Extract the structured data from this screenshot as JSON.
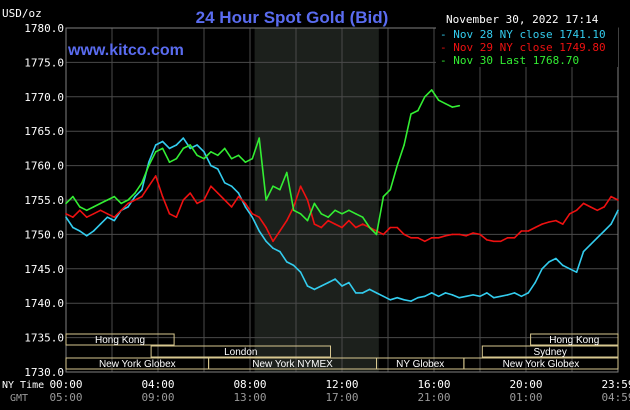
{
  "header": {
    "title": "24 Hour Spot Gold (Bid)",
    "currency": "USD/oz",
    "timestamp": "November 30, 2022 17:14",
    "watermark": "www.kitco.com"
  },
  "colors": {
    "background": "#000000",
    "plot_background": "#000000",
    "grid": "#4a4a4a",
    "shaded_session": "#1c201c",
    "title": "#5a6cf0",
    "watermark": "#5a6cf0",
    "axis_text": "#ffffff",
    "gmt_text": "#9a9a9a",
    "session_box": "#d8c890",
    "series": [
      "#33ccee",
      "#ee1111",
      "#33ee33"
    ]
  },
  "legend": {
    "placement": "top-right",
    "entries": [
      {
        "dash": "-",
        "text": "Nov 28 NY close 1741.10",
        "color": "#33ccee"
      },
      {
        "dash": "-",
        "text": "Nov 29 NY close 1749.80",
        "color": "#ee1111"
      },
      {
        "dash": "-",
        "text": "Nov 30 Last 1768.70",
        "color": "#33ee33"
      }
    ]
  },
  "axis": {
    "ny_time_label": "NY Time",
    "gmt_label": "GMT",
    "x_ticks": [
      {
        "ny": "00:00",
        "gmt": "05:00",
        "hour": 0
      },
      {
        "ny": "04:00",
        "gmt": "09:00",
        "hour": 4
      },
      {
        "ny": "08:00",
        "gmt": "13:00",
        "hour": 8
      },
      {
        "ny": "12:00",
        "gmt": "17:00",
        "hour": 12
      },
      {
        "ny": "16:00",
        "gmt": "21:00",
        "hour": 16
      },
      {
        "ny": "20:00",
        "gmt": "01:00",
        "hour": 20
      },
      {
        "ny": "23:59",
        "gmt": "04:59",
        "hour": 24
      }
    ],
    "y_ticks": [
      "1780.0",
      "1775.0",
      "1770.0",
      "1765.0",
      "1760.0",
      "1755.0",
      "1750.0",
      "1745.0",
      "1740.0",
      "1735.0",
      "1730.0"
    ]
  },
  "sessions": [
    {
      "label": "Hong Kong",
      "start": 0,
      "end": 4.7,
      "row": 0
    },
    {
      "label": "Hong Kong",
      "start": 20.2,
      "end": 24,
      "row": 0
    },
    {
      "label": "London",
      "start": 3.7,
      "end": 11.5,
      "row": 1
    },
    {
      "label": "Sydney",
      "start": 18.1,
      "end": 24,
      "row": 1
    },
    {
      "label": "New York Globex",
      "start": 0,
      "end": 6.2,
      "row": 2
    },
    {
      "label": "New York NYMEX",
      "start": 6.2,
      "end": 13.5,
      "row": 2
    },
    {
      "label": "NY Globex",
      "start": 13.5,
      "end": 17.3,
      "row": 2
    },
    {
      "label": "New York Globex",
      "start": 17.3,
      "end": 24,
      "row": 2
    }
  ],
  "chart_data": {
    "type": "line",
    "title": "24 Hour Spot Gold (Bid)",
    "ylabel": "USD/oz",
    "xlabel": "NY Time",
    "xlim": [
      0,
      24
    ],
    "ylim": [
      1730,
      1780
    ],
    "grid": true,
    "legend": "top-right",
    "shaded_region": [
      8.2,
      13.6
    ],
    "series": [
      {
        "name": "Nov 28 NY close 1741.10",
        "color": "#33ccee",
        "x": [
          0,
          0.3,
          0.6,
          0.9,
          1.2,
          1.5,
          1.8,
          2.1,
          2.4,
          2.7,
          3.0,
          3.3,
          3.6,
          3.9,
          4.2,
          4.5,
          4.8,
          5.1,
          5.4,
          5.7,
          6.0,
          6.3,
          6.6,
          6.9,
          7.2,
          7.5,
          7.8,
          8.1,
          8.4,
          8.7,
          9.0,
          9.3,
          9.6,
          9.9,
          10.2,
          10.5,
          10.8,
          11.1,
          11.4,
          11.7,
          12.0,
          12.3,
          12.6,
          12.9,
          13.2,
          13.5,
          13.8,
          14.1,
          14.4,
          14.7,
          15.0,
          15.3,
          15.6,
          15.9,
          16.2,
          16.5,
          16.8,
          17.1,
          17.4,
          17.7,
          18.0,
          18.3,
          18.6,
          18.9,
          19.2,
          19.5,
          19.8,
          20.1,
          20.4,
          20.7,
          21.0,
          21.3,
          21.6,
          21.9,
          22.2,
          22.5,
          22.8,
          23.1,
          23.4,
          23.7,
          24.0
        ],
        "values": [
          1752.5,
          1751.0,
          1750.5,
          1749.8,
          1750.5,
          1751.5,
          1752.5,
          1752.0,
          1753.5,
          1754.0,
          1755.5,
          1756.5,
          1760.5,
          1763.0,
          1763.5,
          1762.5,
          1763.0,
          1764.0,
          1762.5,
          1763.0,
          1762.0,
          1760.0,
          1759.5,
          1757.5,
          1757.0,
          1756.0,
          1754.0,
          1752.5,
          1750.5,
          1749.0,
          1748.0,
          1747.5,
          1746.0,
          1745.5,
          1744.5,
          1742.5,
          1742.0,
          1742.5,
          1743.0,
          1743.5,
          1742.5,
          1743.0,
          1741.5,
          1741.5,
          1742.0,
          1741.5,
          1741.0,
          1740.5,
          1740.8,
          1740.5,
          1740.3,
          1740.8,
          1741.0,
          1741.5,
          1741.0,
          1741.5,
          1741.2,
          1740.8,
          1741.0,
          1741.2,
          1741.0,
          1741.5,
          1740.8,
          1741.0,
          1741.2,
          1741.5,
          1741.0,
          1741.5,
          1743.0,
          1745.0,
          1746.0,
          1746.5,
          1745.5,
          1745.0,
          1744.5,
          1747.5,
          1748.5,
          1749.5,
          1750.5,
          1751.5,
          1753.5
        ]
      },
      {
        "name": "Nov 29 NY close 1749.80",
        "color": "#ee1111",
        "x": [
          0,
          0.3,
          0.6,
          0.9,
          1.2,
          1.5,
          1.8,
          2.1,
          2.4,
          2.7,
          3.0,
          3.3,
          3.6,
          3.9,
          4.2,
          4.5,
          4.8,
          5.1,
          5.4,
          5.7,
          6.0,
          6.3,
          6.6,
          6.9,
          7.2,
          7.5,
          7.8,
          8.1,
          8.4,
          8.7,
          9.0,
          9.3,
          9.6,
          9.9,
          10.2,
          10.5,
          10.8,
          11.1,
          11.4,
          11.7,
          12.0,
          12.3,
          12.6,
          12.9,
          13.2,
          13.5,
          13.8,
          14.1,
          14.4,
          14.7,
          15.0,
          15.3,
          15.6,
          15.9,
          16.2,
          16.5,
          16.8,
          17.1,
          17.4,
          17.7,
          18.0,
          18.3,
          18.6,
          18.9,
          19.2,
          19.5,
          19.8,
          20.1,
          20.4,
          20.7,
          21.0,
          21.3,
          21.6,
          21.9,
          22.2,
          22.5,
          22.8,
          23.1,
          23.4,
          23.7,
          24.0
        ],
        "values": [
          1753.0,
          1752.5,
          1753.5,
          1752.5,
          1753.0,
          1753.5,
          1753.0,
          1752.5,
          1753.5,
          1754.5,
          1755.0,
          1755.5,
          1757.0,
          1758.5,
          1755.5,
          1753.0,
          1752.5,
          1755.0,
          1756.0,
          1754.5,
          1755.0,
          1757.0,
          1756.0,
          1755.0,
          1754.0,
          1755.5,
          1754.5,
          1753.0,
          1752.5,
          1751.0,
          1749.0,
          1750.5,
          1752.0,
          1754.0,
          1757.0,
          1755.0,
          1751.5,
          1751.0,
          1752.0,
          1751.5,
          1751.0,
          1752.0,
          1751.0,
          1751.5,
          1751.0,
          1750.5,
          1750.0,
          1751.0,
          1751.0,
          1750.0,
          1749.5,
          1749.5,
          1749.0,
          1749.5,
          1749.5,
          1749.8,
          1750.0,
          1750.0,
          1749.8,
          1750.2,
          1750.0,
          1749.2,
          1749.0,
          1749.0,
          1749.5,
          1749.5,
          1750.5,
          1750.5,
          1751.0,
          1751.5,
          1751.8,
          1752.0,
          1751.5,
          1753.0,
          1753.5,
          1754.5,
          1754.0,
          1753.5,
          1754.0,
          1755.5,
          1755.0
        ]
      },
      {
        "name": "Nov 30 Last 1768.70",
        "color": "#33ee33",
        "x": [
          0,
          0.3,
          0.6,
          0.9,
          1.2,
          1.5,
          1.8,
          2.1,
          2.4,
          2.7,
          3.0,
          3.3,
          3.6,
          3.9,
          4.2,
          4.5,
          4.8,
          5.1,
          5.4,
          5.7,
          6.0,
          6.3,
          6.6,
          6.9,
          7.2,
          7.5,
          7.8,
          8.1,
          8.4,
          8.7,
          9.0,
          9.3,
          9.6,
          9.9,
          10.2,
          10.5,
          10.8,
          11.1,
          11.4,
          11.7,
          12.0,
          12.3,
          12.6,
          12.9,
          13.2,
          13.5,
          13.8,
          14.1,
          14.4,
          14.7,
          15.0,
          15.3,
          15.6,
          15.9,
          16.2,
          16.5,
          16.8,
          17.1
        ],
        "values": [
          1754.5,
          1755.5,
          1754.0,
          1753.5,
          1754.0,
          1754.5,
          1755.0,
          1755.5,
          1754.5,
          1755.0,
          1756.0,
          1757.5,
          1760.0,
          1762.0,
          1762.5,
          1760.5,
          1761.0,
          1762.5,
          1763.0,
          1761.5,
          1761.0,
          1762.0,
          1761.5,
          1762.5,
          1761.0,
          1761.5,
          1760.5,
          1761.0,
          1764.0,
          1755.0,
          1757.0,
          1756.5,
          1759.0,
          1753.5,
          1753.0,
          1752.0,
          1754.5,
          1753.0,
          1752.5,
          1753.5,
          1753.0,
          1753.5,
          1753.0,
          1752.5,
          1751.0,
          1750.0,
          1755.5,
          1756.5,
          1760.0,
          1763.0,
          1767.5,
          1768.0,
          1770.0,
          1771.0,
          1769.5,
          1769.0,
          1768.5,
          1768.7
        ]
      }
    ]
  }
}
